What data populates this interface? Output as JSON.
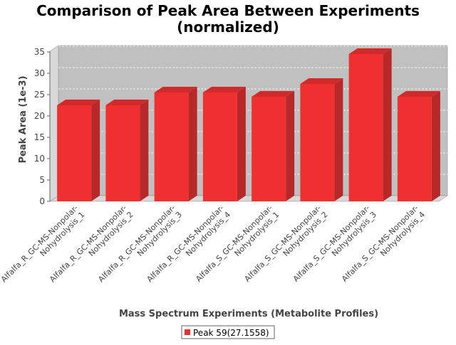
{
  "chart_data": {
    "type": "bar",
    "title_line1": "Comparison of Peak Area Between Experiments",
    "title_line2": "(normalized)",
    "xlabel": "Mass Spectrum Experiments (Metabolite Profiles)",
    "ylabel": "Peak Area (1e-3)",
    "ylim": [
      0,
      35
    ],
    "yticks": [
      0,
      5,
      10,
      15,
      20,
      25,
      30,
      35
    ],
    "grid": true,
    "legend_position": "bottom",
    "categories": [
      [
        "Alfalfa_R_GC-MS-Nonpolar-",
        "Nohydrolysis_1"
      ],
      [
        "Alfalfa_R_GC-MS-Nonpolar-",
        "Nohydrolysis_2"
      ],
      [
        "Alfalfa_R_GC-MS-Nonpolar-",
        "Nohydrolysis_3"
      ],
      [
        "Alfalfa_R_GC-MS-Nonpolar-",
        "Nohydrolysis_4"
      ],
      [
        "Alfalfa_S_GC-MS-Nonpolar-",
        "Nohydrolysis_1"
      ],
      [
        "Alfalfa_S_GC-MS-Nonpolar-",
        "Nohydrolysis_2"
      ],
      [
        "Alfalfa_S_GC-MS-Nonpolar-",
        "Nohydrolysis_3"
      ],
      [
        "Alfalfa_S_GC-MS-Nonpolar-",
        "Nohydrolysis_4"
      ]
    ],
    "series": [
      {
        "name": "Peak 59(27.1558)",
        "color": "#f03030",
        "values": [
          22.5,
          22.5,
          25.5,
          25.5,
          24.5,
          27.5,
          34.5,
          24.5
        ]
      }
    ]
  },
  "colors": {
    "plot_bg": "#c0c0c0",
    "wall": "#d8d8d8",
    "bar_front": "#f03030",
    "bar_side": "#b82828",
    "bar_top": "#d02a2a"
  }
}
